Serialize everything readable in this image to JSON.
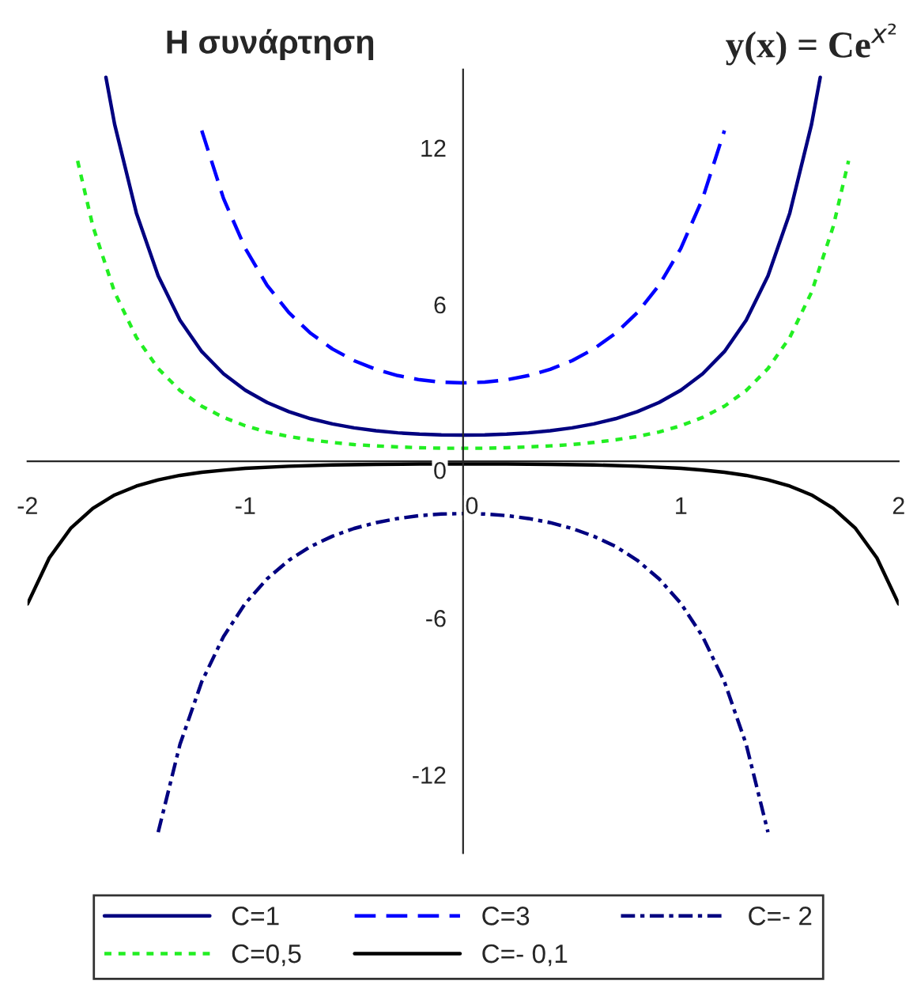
{
  "chart_data": {
    "type": "line",
    "title": "Η συνάρτηση",
    "subtitle": "y(x) = Ce$^{x²}$",
    "xlim": [
      -2,
      2
    ],
    "ylim": [
      -15,
      15
    ],
    "xticks": [
      -2,
      -1,
      0,
      1,
      2
    ],
    "yticks": [
      -12,
      -6,
      0,
      6,
      12
    ],
    "grid": false,
    "legend": "bottom",
    "series": [
      {
        "name": "C=1",
        "color": "#000080",
        "line_style": "solid",
        "x": [
          -1.64,
          -1.6,
          -1.5,
          -1.4,
          -1.3,
          -1.2,
          -1.1,
          -1.0,
          -0.9,
          -0.8,
          -0.7,
          -0.6,
          -0.5,
          -0.4,
          -0.3,
          -0.2,
          -0.1,
          0,
          0.1,
          0.2,
          0.3,
          0.4,
          0.5,
          0.6,
          0.7,
          0.8,
          0.9,
          1.0,
          1.1,
          1.2,
          1.3,
          1.4,
          1.5,
          1.6,
          1.64
        ],
        "values": [
          14.7,
          12.9,
          9.5,
          7.1,
          5.4,
          4.2,
          3.35,
          2.72,
          2.25,
          1.9,
          1.63,
          1.43,
          1.28,
          1.17,
          1.09,
          1.04,
          1.01,
          1,
          1.01,
          1.04,
          1.09,
          1.17,
          1.28,
          1.43,
          1.63,
          1.9,
          2.25,
          2.72,
          3.35,
          4.2,
          5.4,
          7.1,
          9.5,
          12.9,
          14.7
        ]
      },
      {
        "name": "C=0,5",
        "color": "#22ee22",
        "line_style": "dotted",
        "x": [
          -1.77,
          -1.7,
          -1.6,
          -1.5,
          -1.4,
          -1.3,
          -1.2,
          -1.1,
          -1.0,
          -0.9,
          -0.8,
          -0.7,
          -0.6,
          -0.5,
          -0.4,
          -0.3,
          -0.2,
          -0.1,
          0,
          0.1,
          0.2,
          0.3,
          0.4,
          0.5,
          0.6,
          0.7,
          0.8,
          0.9,
          1.0,
          1.1,
          1.2,
          1.3,
          1.4,
          1.5,
          1.6,
          1.7,
          1.77
        ],
        "values": [
          11.5,
          9.0,
          6.47,
          4.74,
          3.55,
          2.71,
          2.11,
          1.68,
          1.36,
          1.12,
          0.95,
          0.82,
          0.72,
          0.64,
          0.59,
          0.55,
          0.52,
          0.5,
          0.5,
          0.5,
          0.52,
          0.55,
          0.59,
          0.64,
          0.72,
          0.82,
          0.95,
          1.12,
          1.36,
          1.68,
          2.11,
          2.71,
          3.55,
          4.74,
          6.47,
          9.0,
          11.5
        ]
      },
      {
        "name": "C=3",
        "color": "#0000ff",
        "line_style": "dashed",
        "x": [
          -1.2,
          -1.1,
          -1.0,
          -0.9,
          -0.8,
          -0.7,
          -0.6,
          -0.5,
          -0.4,
          -0.3,
          -0.2,
          -0.1,
          0,
          0.1,
          0.2,
          0.3,
          0.4,
          0.5,
          0.6,
          0.7,
          0.8,
          0.9,
          1.0,
          1.1,
          1.2
        ],
        "values": [
          12.66,
          10.06,
          8.15,
          6.74,
          5.69,
          4.9,
          4.3,
          3.85,
          3.52,
          3.28,
          3.12,
          3.03,
          3,
          3.03,
          3.12,
          3.28,
          3.52,
          3.85,
          4.3,
          4.9,
          5.69,
          6.74,
          8.15,
          10.06,
          12.66
        ]
      },
      {
        "name": "C=- 0,1",
        "color": "#000000",
        "line_style": "solid",
        "x": [
          -2,
          -1.9,
          -1.8,
          -1.7,
          -1.6,
          -1.5,
          -1.4,
          -1.3,
          -1.2,
          -1.1,
          -1.0,
          -0.8,
          -0.6,
          -0.4,
          -0.2,
          0,
          0.2,
          0.4,
          0.6,
          0.8,
          1.0,
          1.1,
          1.2,
          1.3,
          1.4,
          1.5,
          1.6,
          1.7,
          1.8,
          1.9,
          2
        ],
        "values": [
          -5.46,
          -3.7,
          -2.55,
          -1.8,
          -1.29,
          -0.95,
          -0.71,
          -0.54,
          -0.42,
          -0.34,
          -0.27,
          -0.19,
          -0.14,
          -0.12,
          -0.1,
          -0.1,
          -0.1,
          -0.12,
          -0.14,
          -0.19,
          -0.27,
          -0.34,
          -0.42,
          -0.54,
          -0.71,
          -0.95,
          -1.29,
          -1.8,
          -2.55,
          -3.7,
          -5.46
        ]
      },
      {
        "name": "C=- 2",
        "color": "#000080",
        "line_style": "dashdot",
        "x": [
          -1.4,
          -1.3,
          -1.2,
          -1.1,
          -1.0,
          -0.9,
          -0.8,
          -0.7,
          -0.6,
          -0.5,
          -0.4,
          -0.3,
          -0.2,
          -0.1,
          0,
          0.1,
          0.2,
          0.3,
          0.4,
          0.5,
          0.6,
          0.7,
          0.8,
          0.9,
          1.0,
          1.1,
          1.2,
          1.3,
          1.4
        ],
        "values": [
          -14.2,
          -10.84,
          -8.44,
          -6.71,
          -5.44,
          -4.5,
          -3.79,
          -3.26,
          -2.87,
          -2.57,
          -2.35,
          -2.19,
          -2.08,
          -2.02,
          -2,
          -2.02,
          -2.08,
          -2.19,
          -2.35,
          -2.57,
          -2.87,
          -3.26,
          -3.79,
          -4.5,
          -5.44,
          -6.71,
          -8.44,
          -10.84,
          -14.2
        ]
      }
    ]
  }
}
